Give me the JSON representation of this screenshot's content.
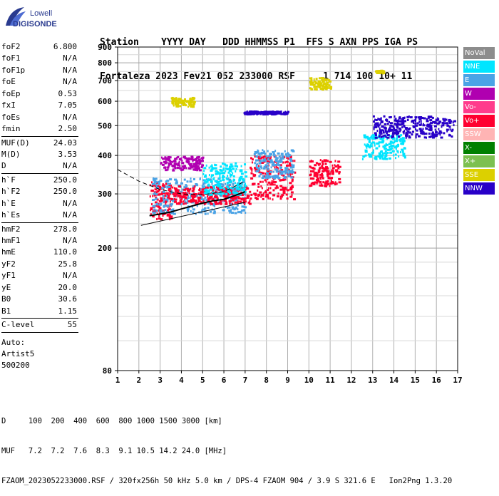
{
  "logo": {
    "line1": "Lowell",
    "line2": "DIGISONDE"
  },
  "header": {
    "labels": "Station    YYYY DAY   DDD HHMMSS P1  FFS S AXN PPS IGA PS",
    "values": "Fortaleza 2023 Fev21 052 233000 RSF     1 714 100 10+ 11"
  },
  "params": {
    "group1": [
      {
        "name": "foF2",
        "value": "6.800"
      },
      {
        "name": "foF1",
        "value": "N/A"
      },
      {
        "name": "foF1p",
        "value": "N/A"
      },
      {
        "name": "foE",
        "value": "N/A"
      },
      {
        "name": "foEp",
        "value": "0.53"
      },
      {
        "name": "fxI",
        "value": "7.05"
      },
      {
        "name": "foEs",
        "value": "N/A"
      },
      {
        "name": "fmin",
        "value": "2.50"
      }
    ],
    "group2": [
      {
        "name": "MUF(D)",
        "value": "24.03"
      },
      {
        "name": "M(D)",
        "value": "3.53"
      },
      {
        "name": "D",
        "value": "N/A"
      }
    ],
    "group3": [
      {
        "name": "h`F",
        "value": "250.0"
      },
      {
        "name": "h`F2",
        "value": "250.0"
      },
      {
        "name": "h`E",
        "value": "N/A"
      },
      {
        "name": "h`Es",
        "value": "N/A"
      }
    ],
    "group4": [
      {
        "name": "hmF2",
        "value": "278.0"
      },
      {
        "name": "hmF1",
        "value": "N/A"
      },
      {
        "name": "hmE",
        "value": "110.0"
      },
      {
        "name": "yF2",
        "value": "25.8"
      },
      {
        "name": "yF1",
        "value": "N/A"
      },
      {
        "name": "yE",
        "value": "20.0"
      },
      {
        "name": "B0",
        "value": "30.6"
      },
      {
        "name": "B1",
        "value": "1.15"
      }
    ],
    "group5": [
      {
        "name": "C-level",
        "value": "55"
      }
    ],
    "auto": [
      "Auto:",
      "Artist5",
      "500200"
    ]
  },
  "legend": [
    {
      "label": "NoVal",
      "color": "#8c8c8c"
    },
    {
      "label": "NNE",
      "color": "#00e5ff"
    },
    {
      "label": "E",
      "color": "#4aa3e6"
    },
    {
      "label": "W",
      "color": "#b000b0"
    },
    {
      "label": "Vo-",
      "color": "#ff3c8c"
    },
    {
      "label": "Vo+",
      "color": "#ff0030"
    },
    {
      "label": "SSW",
      "color": "#ffb4b4"
    },
    {
      "label": "X-",
      "color": "#008000"
    },
    {
      "label": "X+",
      "color": "#7cc050"
    },
    {
      "label": "SSE",
      "color": "#dcd000"
    },
    {
      "label": "NNW",
      "color": "#2800c8"
    }
  ],
  "footer": {
    "line1": "D     100  200  400  600  800 1000 1500 3000 [km]",
    "line2": "MUF   7.2  7.2  7.6  8.3  9.1 10.5 14.2 24.0 [MHz]",
    "line3": "FZAOM_2023052233000.RSF / 320fx256h 50 kHz 5.0 km / DPS-4 FZAOM 904 / 3.9 S 321.6 E   Ion2Png 1.3.20"
  },
  "chart_data": {
    "type": "scatter",
    "xlim": [
      1,
      17
    ],
    "ylim": [
      80,
      900
    ],
    "x_ticks": [
      "1",
      "2",
      "3",
      "4",
      "5",
      "6",
      "7",
      "8",
      "9",
      "10",
      "11",
      "12",
      "13",
      "14",
      "15",
      "16",
      "17"
    ],
    "y_ticks": [
      "80",
      "200",
      "300",
      "400",
      "500",
      "600",
      "700",
      "800",
      "900"
    ],
    "grid": true,
    "clusters": [
      {
        "x": [
          2.5,
          3.5
        ],
        "y": [
          250,
          330
        ],
        "tag": "Vo+"
      },
      {
        "x": [
          2.6,
          7.0
        ],
        "y": [
          260,
          340
        ],
        "tag": "E"
      },
      {
        "x": [
          3.0,
          5.0
        ],
        "y": [
          360,
          400
        ],
        "tag": "W"
      },
      {
        "x": [
          3.5,
          7.2
        ],
        "y": [
          280,
          320
        ],
        "tag": "Vo+"
      },
      {
        "x": [
          5.0,
          7.0
        ],
        "y": [
          300,
          380
        ],
        "tag": "NNE"
      },
      {
        "x": [
          7.2,
          9.3
        ],
        "y": [
          290,
          400
        ],
        "tag": "Vo+"
      },
      {
        "x": [
          7.4,
          9.2
        ],
        "y": [
          340,
          420
        ],
        "tag": "E"
      },
      {
        "x": [
          10.0,
          11.4
        ],
        "y": [
          320,
          390
        ],
        "tag": "Vo+"
      },
      {
        "x": [
          12.5,
          14.5
        ],
        "y": [
          390,
          470
        ],
        "tag": "NNE"
      },
      {
        "x": [
          13.0,
          16.8
        ],
        "y": [
          460,
          540
        ],
        "tag": "NNW"
      },
      {
        "x": [
          6.9,
          9.0
        ],
        "y": [
          548,
          560
        ],
        "tag": "NNW"
      },
      {
        "x": [
          3.5,
          4.6
        ],
        "y": [
          580,
          620
        ],
        "tag": "SSE"
      },
      {
        "x": [
          10.0,
          11.0
        ],
        "y": [
          660,
          720
        ],
        "tag": "SSE"
      },
      {
        "x": [
          13.1,
          13.5
        ],
        "y": [
          745,
          760
        ],
        "tag": "SSE"
      }
    ],
    "profile_curve": [
      [
        2.5,
        255
      ],
      [
        3.0,
        258
      ],
      [
        3.5,
        262
      ],
      [
        4.0,
        268
      ],
      [
        4.5,
        274
      ],
      [
        5.0,
        280
      ],
      [
        5.5,
        285
      ],
      [
        6.0,
        288
      ],
      [
        6.5,
        296
      ],
      [
        7.0,
        305
      ]
    ],
    "trace_lower": [
      [
        2.1,
        237
      ],
      [
        7.0,
        282
      ]
    ],
    "trace_upper_dashed": [
      [
        1.0,
        360
      ],
      [
        2.0,
        330
      ],
      [
        3.0,
        310
      ],
      [
        4.0,
        300
      ],
      [
        5.0,
        298
      ],
      [
        6.0,
        305
      ],
      [
        7.0,
        330
      ]
    ]
  }
}
